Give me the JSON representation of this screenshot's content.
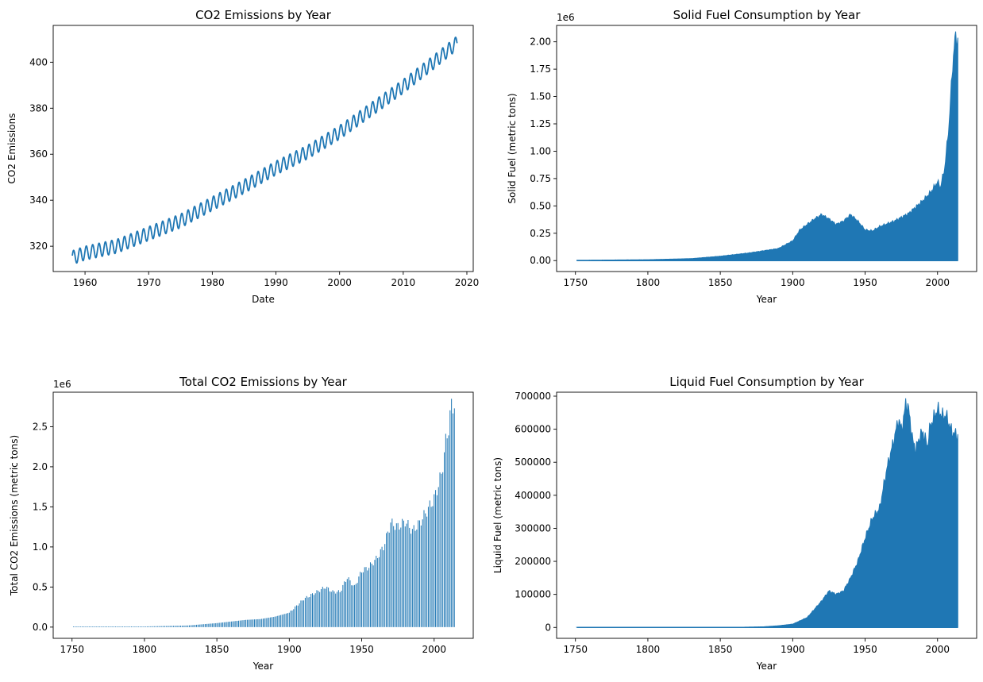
{
  "colors": {
    "series": "#1f77b4",
    "axis": "#000000"
  },
  "chart_data": [
    {
      "id": "co2",
      "type": "line",
      "title": "CO2 Emissions by Year",
      "xlabel": "Date",
      "ylabel": "CO2 Emissions",
      "xlim": [
        1955,
        2021
      ],
      "ylim": [
        309,
        416
      ],
      "xticks": [
        1960,
        1970,
        1980,
        1990,
        2000,
        2010,
        2020
      ],
      "yticks": [
        320,
        340,
        360,
        380,
        400
      ],
      "offset_label": "",
      "grid": false,
      "series": [
        {
          "x": [
            1958,
            1960,
            1965,
            1970,
            1975,
            1980,
            1985,
            1990,
            1995,
            2000,
            2005,
            2010,
            2015,
            2018.5
          ],
          "y": [
            315,
            317,
            320,
            325.5,
            331,
            338.5,
            346,
            354,
            361,
            369.5,
            379.5,
            389.5,
            400.5,
            408.5
          ],
          "seasonal_amplitude": 3
        }
      ]
    },
    {
      "id": "solid",
      "type": "area",
      "title": "Solid Fuel Consumption by Year",
      "xlabel": "Year",
      "ylabel": "Solid Fuel (metric tons)",
      "xlim": [
        1737,
        2027
      ],
      "ylim": [
        -0.1,
        2.15
      ],
      "xticks": [
        1750,
        1800,
        1850,
        1900,
        1950,
        2000
      ],
      "yticks": [
        0.0,
        0.25,
        0.5,
        0.75,
        1.0,
        1.25,
        1.5,
        1.75,
        2.0
      ],
      "ytick_labels": [
        "0.00",
        "0.25",
        "0.50",
        "0.75",
        "1.00",
        "1.25",
        "1.50",
        "1.75",
        "2.00"
      ],
      "offset_label": "1e6",
      "grid": false,
      "series": [
        {
          "x": [
            1751,
            1800,
            1830,
            1850,
            1870,
            1880,
            1890,
            1900,
            1905,
            1910,
            1915,
            1920,
            1925,
            1930,
            1935,
            1940,
            1945,
            1950,
            1955,
            1960,
            1970,
            1980,
            1990,
            1995,
            2000,
            2002,
            2005,
            2008,
            2010,
            2012,
            2014
          ],
          "y": [
            0.003,
            0.008,
            0.018,
            0.04,
            0.07,
            0.09,
            0.11,
            0.18,
            0.28,
            0.33,
            0.38,
            0.42,
            0.38,
            0.33,
            0.36,
            0.42,
            0.36,
            0.28,
            0.27,
            0.31,
            0.36,
            0.43,
            0.55,
            0.62,
            0.72,
            0.67,
            0.85,
            1.25,
            1.7,
            2.03,
            2.02
          ]
        }
      ]
    },
    {
      "id": "total",
      "type": "bar",
      "title": "Total CO2 Emissions by Year",
      "xlabel": "Year",
      "ylabel": "Total CO2 Emissions (metric tons)",
      "xlim": [
        1737,
        2027
      ],
      "ylim": [
        -0.14,
        2.93
      ],
      "xticks": [
        1750,
        1800,
        1850,
        1900,
        1950,
        2000
      ],
      "yticks": [
        0.0,
        0.5,
        1.0,
        1.5,
        2.0,
        2.5
      ],
      "ytick_labels": [
        "0.0",
        "0.5",
        "1.0",
        "1.5",
        "2.0",
        "2.5"
      ],
      "offset_label": "1e6",
      "grid": false,
      "series": [
        {
          "x": [
            1751,
            1800,
            1830,
            1850,
            1870,
            1880,
            1890,
            1900,
            1910,
            1920,
            1925,
            1930,
            1935,
            1940,
            1945,
            1950,
            1955,
            1960,
            1965,
            1970,
            1975,
            1980,
            1985,
            1990,
            1995,
            2000,
            2003,
            2005,
            2008,
            2010,
            2012,
            2014
          ],
          "y": [
            0.003,
            0.008,
            0.02,
            0.05,
            0.09,
            0.1,
            0.13,
            0.18,
            0.35,
            0.45,
            0.5,
            0.44,
            0.44,
            0.62,
            0.5,
            0.7,
            0.75,
            0.85,
            1.0,
            1.3,
            1.25,
            1.32,
            1.2,
            1.3,
            1.45,
            1.6,
            1.78,
            1.9,
            2.3,
            2.5,
            2.75,
            2.8
          ]
        }
      ]
    },
    {
      "id": "liquid",
      "type": "area",
      "title": "Liquid Fuel Consumption by Year",
      "xlabel": "Year",
      "ylabel": "Liquid Fuel (metric tons)",
      "xlim": [
        1737,
        2027
      ],
      "ylim": [
        -33000,
        712000
      ],
      "xticks": [
        1750,
        1800,
        1850,
        1900,
        1950,
        2000
      ],
      "yticks": [
        0,
        100000,
        200000,
        300000,
        400000,
        500000,
        600000,
        700000
      ],
      "ytick_labels": [
        "0",
        "100000",
        "200000",
        "300000",
        "400000",
        "500000",
        "600000",
        "700000"
      ],
      "offset_label": "",
      "grid": false,
      "series": [
        {
          "x": [
            1751,
            1860,
            1880,
            1890,
            1900,
            1910,
            1920,
            1925,
            1930,
            1935,
            1940,
            1945,
            1950,
            1955,
            1960,
            1965,
            1970,
            1973,
            1975,
            1977,
            1978,
            1980,
            1983,
            1985,
            1988,
            1990,
            1993,
            1995,
            2000,
            2003,
            2006,
            2010,
            2014
          ],
          "y": [
            0,
            200,
            2000,
            5000,
            10000,
            30000,
            80000,
            110000,
            100000,
            110000,
            150000,
            200000,
            270000,
            330000,
            360000,
            480000,
            570000,
            630000,
            600000,
            640000,
            680000,
            660000,
            560000,
            540000,
            580000,
            590000,
            550000,
            610000,
            660000,
            640000,
            640000,
            590000,
            580000
          ]
        }
      ]
    }
  ]
}
